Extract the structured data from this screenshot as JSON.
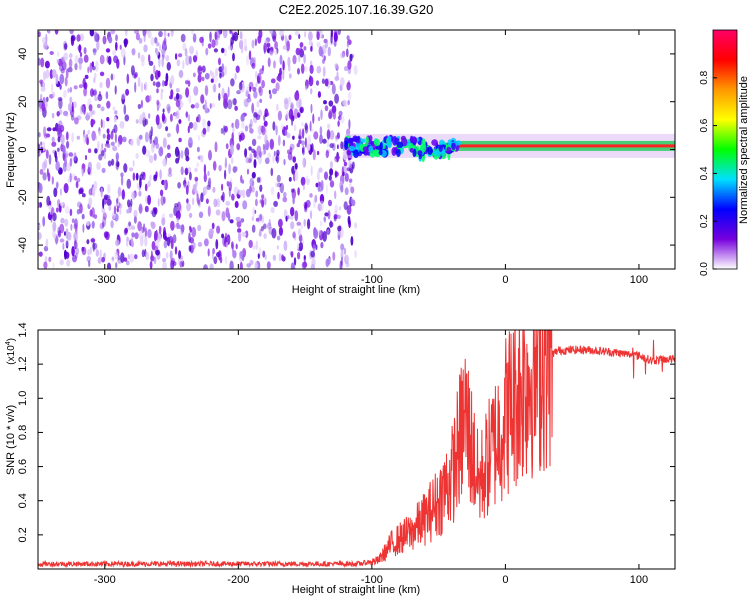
{
  "title": "C2E2.2025.107.16.39.G20",
  "colors": {
    "snr_line": "#ee3333",
    "band": "#33cc66",
    "band_core": "#ff2222",
    "band_edge": "#d9b8f2",
    "noise_colors": [
      "#6a00e0",
      "#8a2be2",
      "#a070f0",
      "#c9a8f5",
      "#e2cffa",
      "#4b00c8"
    ]
  },
  "chart_data": [
    {
      "type": "heatmap",
      "title": "C2E2.2025.107.16.39.G20",
      "xlabel": "Height of straight line (km)",
      "ylabel": "Frequency (Hz)",
      "xlim": [
        -350,
        127
      ],
      "ylim": [
        -50,
        50
      ],
      "x_ticks": [
        -300,
        -200,
        -100,
        0,
        100
      ],
      "y_ticks": [
        -40,
        -20,
        0,
        20,
        40
      ],
      "noise_region_x": [
        -350,
        -112
      ],
      "band_x_range": [
        -120,
        127
      ],
      "band_center_hz": 1.5,
      "band_halfwidth_hz": [
        3,
        6
      ],
      "colorbar": {
        "label": "Normalized spectral amplitude",
        "range": [
          0,
          1
        ],
        "ticks": [
          0.0,
          0.2,
          0.4,
          0.6,
          0.8
        ],
        "tick_labels": [
          "0.0",
          "0.2",
          "0.4",
          "0.6",
          "0.8"
        ],
        "colormap": [
          "#ffffff",
          "#7700dd",
          "#0000ff",
          "#00e0ff",
          "#00ff00",
          "#ffff00",
          "#ff9900",
          "#ff0000",
          "#ff0066"
        ]
      }
    },
    {
      "type": "line",
      "xlabel": "Height of straight line (km)",
      "ylabel": "SNR (10 * v/v)",
      "y_scale_label": "(x10",
      "y_scale_exponent": "4",
      "y_scale_suffix": ")",
      "xlim": [
        -350,
        127
      ],
      "ylim": [
        0,
        14000
      ],
      "x_ticks": [
        -300,
        -200,
        -100,
        0,
        100
      ],
      "y_ticks": [
        2000,
        4000,
        6000,
        8000,
        10000,
        12000,
        14000
      ],
      "y_tick_labels": [
        "0.2",
        "0.4",
        "0.6",
        "0.8",
        "1.0",
        "1.2",
        "1.4"
      ],
      "series": [
        {
          "x": [
            -350,
            -300,
            -200,
            -110,
            -95,
            -85,
            -70,
            -60,
            -50,
            -40,
            -30,
            -25,
            -20,
            -10,
            0,
            10,
            20,
            30,
            40,
            60,
            80,
            100,
            110,
            120,
            127
          ],
          "y": [
            300,
            300,
            300,
            300,
            500,
            1500,
            2200,
            3000,
            4000,
            5500,
            9000,
            7000,
            5000,
            7000,
            9000,
            10500,
            11500,
            12400,
            12800,
            12850,
            12700,
            12500,
            12200,
            12300,
            12300
          ]
        }
      ]
    }
  ]
}
